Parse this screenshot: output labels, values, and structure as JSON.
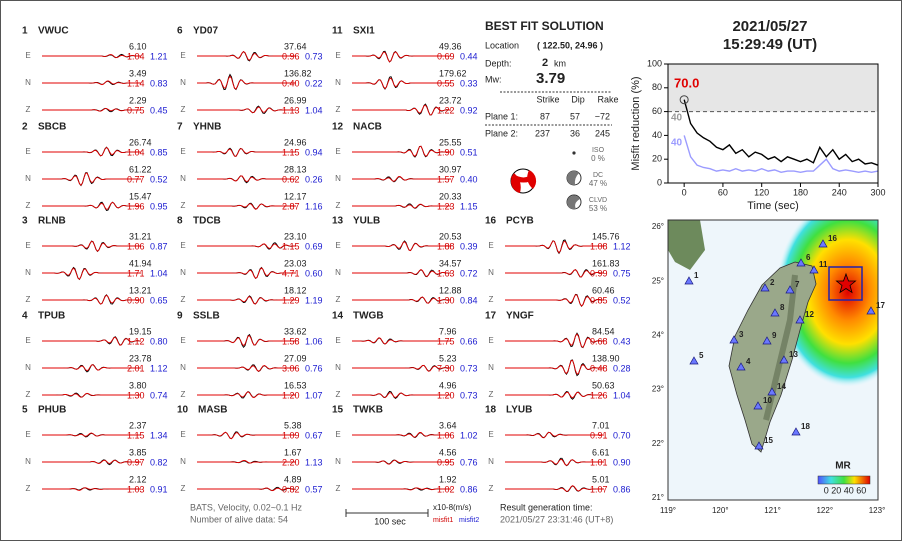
{
  "datetime": {
    "date": "2021/05/27",
    "time": "15:29:49  (UT)"
  },
  "component_labels": [
    "E",
    "N",
    "Z"
  ],
  "stations": [
    {
      "number": "1",
      "name": "VWUC",
      "components": [
        [
          "6.10",
          "1.04",
          "1.21"
        ],
        [
          "3.49",
          "1.14",
          "0.83"
        ],
        [
          "2.29",
          "0.75",
          "0.45"
        ]
      ]
    },
    {
      "number": "2",
      "name": "SBCB",
      "components": [
        [
          "26.74",
          "1.04",
          "0.85"
        ],
        [
          "61.22",
          "0.77",
          "0.52"
        ],
        [
          "15.47",
          "1.96",
          "0.95"
        ]
      ]
    },
    {
      "number": "3",
      "name": "RLNB",
      "components": [
        [
          "31.21",
          "1.06",
          "0.87"
        ],
        [
          "41.94",
          "1.71",
          "1.04"
        ],
        [
          "13.21",
          "0.90",
          "0.65"
        ]
      ]
    },
    {
      "number": "4",
      "name": "TPUB",
      "components": [
        [
          "19.15",
          "1.12",
          "0.80"
        ],
        [
          "23.78",
          "2.01",
          "1.12"
        ],
        [
          "3.80",
          "1.30",
          "0.74"
        ]
      ]
    },
    {
      "number": "5",
      "name": "PHUB",
      "components": [
        [
          "2.37",
          "1.15",
          "1.34"
        ],
        [
          "3.85",
          "0.97",
          "0.82"
        ],
        [
          "2.12",
          "1.03",
          "0.91"
        ]
      ]
    },
    {
      "number": "6",
      "name": "YD07",
      "components": [
        [
          "37.64",
          "0.96",
          "0.73"
        ],
        [
          "136.82",
          "0.40",
          "0.22"
        ],
        [
          "26.99",
          "1.13",
          "1.04"
        ]
      ]
    },
    {
      "number": "7",
      "name": "YHNB",
      "components": [
        [
          "24.96",
          "1.15",
          "0.94"
        ],
        [
          "28.13",
          "0.62",
          "0.26"
        ],
        [
          "12.17",
          "2.87",
          "1.16"
        ]
      ]
    },
    {
      "number": "8",
      "name": "TDCB",
      "components": [
        [
          "23.10",
          "1.15",
          "0.69"
        ],
        [
          "23.03",
          "4.71",
          "0.60"
        ],
        [
          "18.12",
          "1.29",
          "1.19"
        ]
      ]
    },
    {
      "number": "9",
      "name": "SSLB",
      "components": [
        [
          "33.62",
          "1.58",
          "1.06"
        ],
        [
          "27.09",
          "3.06",
          "0.76"
        ],
        [
          "16.53",
          "1.20",
          "1.07"
        ]
      ]
    },
    {
      "number": "10",
      "name": "MASB",
      "components": [
        [
          "5.38",
          "1.09",
          "0.67"
        ],
        [
          "1.67",
          "2.20",
          "1.13"
        ],
        [
          "4.89",
          "0.82",
          "0.57"
        ]
      ]
    },
    {
      "number": "11",
      "name": "SXI1",
      "components": [
        [
          "49.36",
          "0.69",
          "0.44"
        ],
        [
          "179.62",
          "0.55",
          "0.33"
        ],
        [
          "23.72",
          "1.22",
          "0.92"
        ]
      ]
    },
    {
      "number": "12",
      "name": "NACB",
      "components": [
        [
          "25.55",
          "1.90",
          "0.51"
        ],
        [
          "30.97",
          "1.57",
          "0.40"
        ],
        [
          "20.33",
          "1.23",
          "1.15"
        ]
      ]
    },
    {
      "number": "13",
      "name": "YULB",
      "components": [
        [
          "20.53",
          "1.88",
          "0.39"
        ],
        [
          "34.57",
          "1.63",
          "0.72"
        ],
        [
          "12.88",
          "1.30",
          "0.84"
        ]
      ]
    },
    {
      "number": "14",
      "name": "TWGB",
      "components": [
        [
          "7.96",
          "1.75",
          "0.66"
        ],
        [
          "5.23",
          "7.30",
          "0.73"
        ],
        [
          "4.96",
          "1.20",
          "0.73"
        ]
      ]
    },
    {
      "number": "15",
      "name": "TWKB",
      "components": [
        [
          "3.64",
          "1.06",
          "1.02"
        ],
        [
          "4.56",
          "0.95",
          "0.76"
        ],
        [
          "1.92",
          "1.02",
          "0.86"
        ]
      ]
    },
    {
      "number": "16",
      "name": "PCYB",
      "components": [
        [
          "145.76",
          "1.08",
          "1.12"
        ],
        [
          "161.83",
          "0.99",
          "0.75"
        ],
        [
          "60.46",
          "0.85",
          "0.52"
        ]
      ]
    },
    {
      "number": "17",
      "name": "YNGF",
      "components": [
        [
          "84.54",
          "0.68",
          "0.43"
        ],
        [
          "138.90",
          "0.48",
          "0.28"
        ],
        [
          "50.63",
          "1.26",
          "1.04"
        ]
      ]
    },
    {
      "number": "18",
      "name": "LYUB",
      "components": [
        [
          "7.01",
          "0.91",
          "0.70"
        ],
        [
          "6.61",
          "1.01",
          "0.90"
        ],
        [
          "5.01",
          "1.07",
          "0.86"
        ]
      ]
    }
  ],
  "solution": {
    "title": "BEST FIT SOLUTION",
    "location_label": "Location",
    "location": "( 122.50,  24.96 )",
    "depth_label": "Depth:",
    "depth": "2",
    "depth_unit": "km",
    "mw_label": "Mw:",
    "mw": "3.79",
    "table_header": [
      "Strike",
      "Dip",
      "Rake"
    ],
    "planes": [
      {
        "label": "Plane 1:",
        "values": [
          "87",
          "57",
          "−72"
        ]
      },
      {
        "label": "Plane 2:",
        "values": [
          "237",
          "36",
          "245"
        ]
      }
    ],
    "components": [
      {
        "label": "ISO",
        "value": "0 %"
      },
      {
        "label": "DC",
        "value": "47 %"
      },
      {
        "label": "CLVD",
        "value": "53 %"
      }
    ]
  },
  "footer": {
    "info": "BATS, Velocity, 0.02~0.1 Hz",
    "alive": "Number of alive data: 54",
    "scale": "100 sec",
    "unit": "x10-8(m/s)",
    "misfit1": "misfit1",
    "misfit2": "misfit2",
    "result_label": "Result generation time:",
    "result_time": "2021/05/27 23:31:46 (UT+8)"
  },
  "map": {
    "lon_labels": [
      "119°",
      "120°",
      "121°",
      "122°",
      "123°"
    ],
    "lat_labels": [
      "26°",
      "25°",
      "24°",
      "23°",
      "22°",
      "21°"
    ],
    "colorbar_title": "MR",
    "colorbar_labels": "0 20 40 60"
  },
  "chart_data": {
    "type": "line",
    "ylabel": "Misfit reduction (%)",
    "xlabel": "Time (sec)",
    "x": [
      0,
      10,
      20,
      30,
      40,
      50,
      60,
      70,
      80,
      90,
      100,
      110,
      120,
      130,
      140,
      150,
      160,
      170,
      180,
      190,
      200,
      210,
      220,
      230,
      240,
      250,
      260,
      270,
      280,
      290,
      300
    ],
    "series": [
      {
        "name": "misfit1",
        "color": "#000000",
        "values": [
          70,
          50,
          42,
          38,
          35,
          30,
          28,
          32,
          25,
          28,
          22,
          26,
          24,
          20,
          22,
          18,
          22,
          20,
          18,
          20,
          17,
          30,
          22,
          28,
          20,
          24,
          18,
          20,
          16,
          17,
          15
        ]
      },
      {
        "name": "misfit2",
        "color": "#9b9bff",
        "values": [
          40,
          22,
          15,
          13,
          12,
          10,
          11,
          10,
          12,
          10,
          11,
          10,
          12,
          10,
          11,
          9,
          10,
          10,
          9,
          10,
          10,
          15,
          20,
          12,
          10,
          11,
          10,
          9,
          10,
          9,
          10
        ]
      }
    ],
    "annotations": [
      {
        "text": "70.0",
        "color": "#e00000"
      },
      {
        "text": "40",
        "color": "#999999"
      },
      {
        "text": "40",
        "color": "#9b9bff"
      }
    ],
    "reference_line": 60,
    "xlim": [
      -25,
      300
    ],
    "ylim": [
      0,
      100
    ],
    "xticks": [
      0,
      60,
      120,
      180,
      240,
      300
    ],
    "yticks": [
      0,
      20,
      40,
      60,
      80,
      100
    ]
  }
}
